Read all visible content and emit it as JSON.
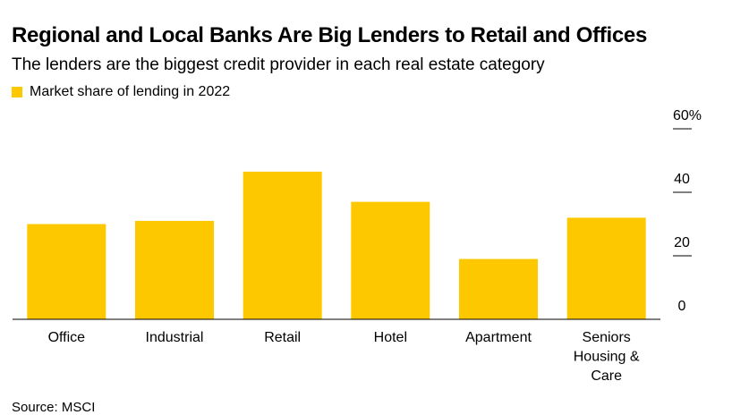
{
  "header": {
    "title": "Regional and Local Banks Are Big Lenders to Retail and Offices",
    "subtitle": "The lenders are the biggest credit provider in each real estate category"
  },
  "legend": {
    "label": "Market share of lending in 2022",
    "color": "#FDC800"
  },
  "footer": {
    "source": "Source: MSCI"
  },
  "chart_data": {
    "type": "bar",
    "categories": [
      "Office",
      "Industrial",
      "Retail",
      "Hotel",
      "Apartment",
      "Seniors Housing & Care"
    ],
    "category_lines": [
      [
        "Office"
      ],
      [
        "Industrial"
      ],
      [
        "Retail"
      ],
      [
        "Hotel"
      ],
      [
        "Apartment"
      ],
      [
        "Seniors",
        "Housing &",
        "Care"
      ]
    ],
    "series": [
      {
        "name": "Market share of lending in 2022",
        "values": [
          30,
          31,
          46.5,
          37,
          19,
          32
        ]
      }
    ],
    "y_ticks": [
      "60%",
      "40",
      "20",
      "0"
    ],
    "y_tick_values": [
      60,
      40,
      20,
      0
    ],
    "ylim": [
      0,
      60
    ],
    "y_axis_side": "right",
    "grid": false,
    "legend_position": "top-left",
    "bar_color": "#FDC800"
  }
}
